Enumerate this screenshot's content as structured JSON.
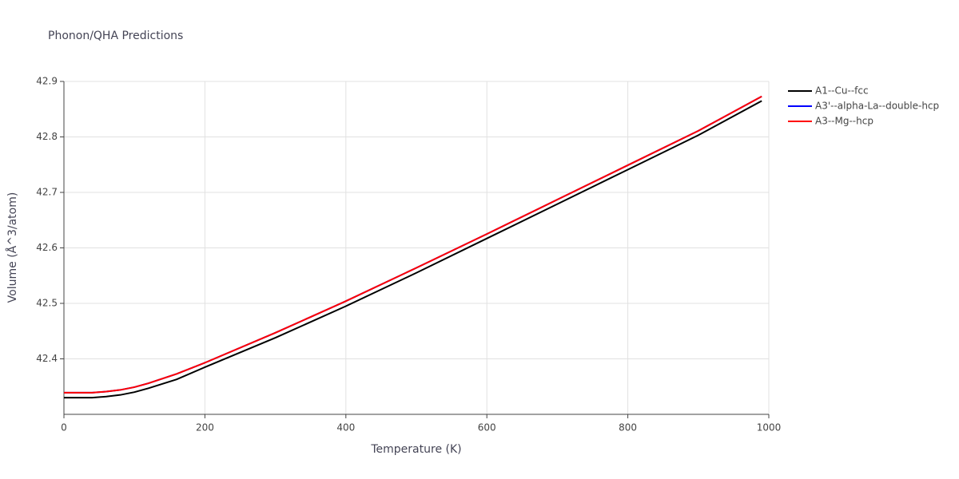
{
  "chart_data": {
    "type": "line",
    "title": "Phonon/QHA Predictions",
    "x_label": "Temperature (K)",
    "y_label": "Volume (Å^3/atom)",
    "x": [
      0,
      20,
      40,
      60,
      80,
      100,
      120,
      160,
      200,
      300,
      400,
      500,
      600,
      700,
      800,
      900,
      990
    ],
    "series": [
      {
        "name": "A1--Cu--fcc",
        "color": "#000000",
        "values": [
          42.33,
          42.33,
          42.33,
          42.332,
          42.335,
          42.34,
          42.347,
          42.363,
          42.385,
          42.438,
          42.495,
          42.555,
          42.617,
          42.679,
          42.741,
          42.803,
          42.865
        ]
      },
      {
        "name": "A3'--alpha-La--double-hcp",
        "color": "#0000ff",
        "values": [
          42.339,
          42.339,
          42.339,
          42.341,
          42.344,
          42.349,
          42.356,
          42.373,
          42.393,
          42.447,
          42.504,
          42.564,
          42.625,
          42.687,
          42.749,
          42.811,
          42.873
        ]
      },
      {
        "name": "A3--Mg--hcp",
        "color": "#ff0000",
        "values": [
          42.339,
          42.339,
          42.339,
          42.341,
          42.344,
          42.349,
          42.356,
          42.373,
          42.393,
          42.447,
          42.504,
          42.564,
          42.625,
          42.687,
          42.749,
          42.811,
          42.873
        ]
      }
    ],
    "xlim": [
      0,
      1000
    ],
    "xticks": [
      0,
      200,
      400,
      600,
      800,
      1000
    ],
    "ylim": [
      42.3,
      42.9
    ],
    "yticks": [
      42.4,
      42.5,
      42.6,
      42.7,
      42.8,
      42.9
    ],
    "grid": true,
    "legend": "right"
  }
}
